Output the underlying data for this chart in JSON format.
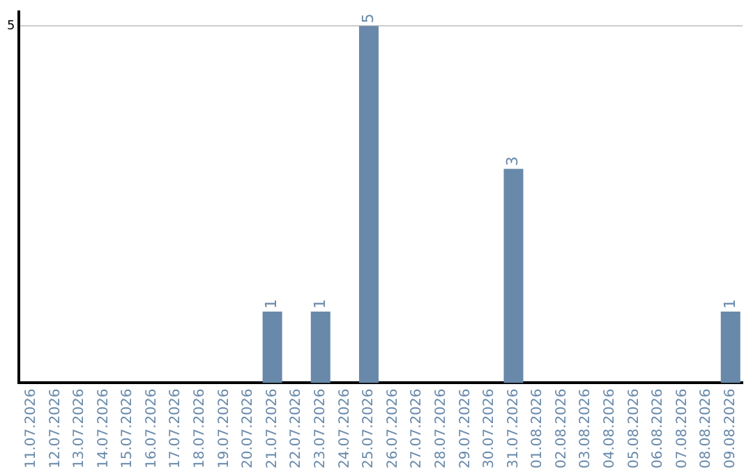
{
  "chart_data": {
    "type": "bar",
    "categories": [
      "11.07.2026",
      "12.07.2026",
      "13.07.2026",
      "14.07.2026",
      "15.07.2026",
      "16.07.2026",
      "17.07.2026",
      "18.07.2026",
      "19.07.2026",
      "20.07.2026",
      "21.07.2026",
      "22.07.2026",
      "23.07.2026",
      "24.07.2026",
      "25.07.2026",
      "26.07.2026",
      "27.07.2026",
      "28.07.2026",
      "29.07.2026",
      "30.07.2026",
      "31.07.2026",
      "01.08.2026",
      "02.08.2026",
      "03.08.2026",
      "04.08.2026",
      "05.08.2026",
      "06.08.2026",
      "07.08.2026",
      "08.08.2026",
      "09.08.2026"
    ],
    "values": [
      0,
      0,
      0,
      0,
      0,
      0,
      0,
      0,
      0,
      0,
      1,
      0,
      1,
      0,
      5,
      0,
      0,
      0,
      0,
      0,
      3,
      0,
      0,
      0,
      0,
      0,
      0,
      0,
      0,
      1
    ],
    "value_labels": [
      null,
      null,
      null,
      null,
      null,
      null,
      null,
      null,
      null,
      null,
      "1",
      null,
      "1",
      null,
      "5",
      null,
      null,
      null,
      null,
      null,
      "3",
      null,
      null,
      null,
      null,
      null,
      null,
      null,
      null,
      "1"
    ],
    "color": "#6889aa",
    "ylim": [
      0,
      5.2
    ],
    "yticks": [
      5
    ],
    "grid": "y",
    "legend": false
  }
}
